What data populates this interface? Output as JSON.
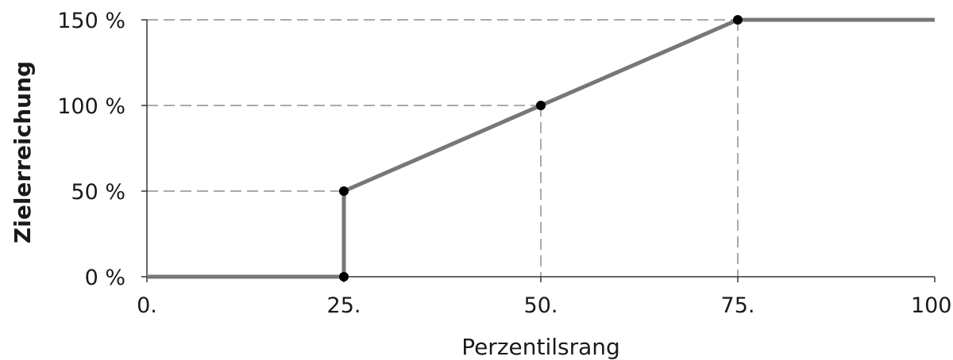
{
  "chart_data": {
    "type": "line",
    "title": "",
    "xlabel": "Perzentilsrang",
    "ylabel": "Zielerreichung",
    "xlim": [
      0,
      100
    ],
    "ylim": [
      0,
      150
    ],
    "x_ticks": [
      {
        "value": 0,
        "label": "0."
      },
      {
        "value": 25,
        "label": "25."
      },
      {
        "value": 50,
        "label": "50."
      },
      {
        "value": 75,
        "label": "75."
      },
      {
        "value": 100,
        "label": "100."
      }
    ],
    "y_ticks": [
      {
        "value": 0,
        "label": "0 %"
      },
      {
        "value": 50,
        "label": "50 %"
      },
      {
        "value": 100,
        "label": "100 %"
      },
      {
        "value": 150,
        "label": "150 %"
      }
    ],
    "series": [
      {
        "x": [
          0,
          25,
          25,
          50,
          75,
          100
        ],
        "y": [
          0,
          0,
          50,
          100,
          150,
          150
        ]
      }
    ],
    "markers": [
      {
        "x": 25,
        "y": 0
      },
      {
        "x": 25,
        "y": 50
      },
      {
        "x": 50,
        "y": 100
      },
      {
        "x": 75,
        "y": 150
      }
    ],
    "reference_lines": [
      {
        "x": 25,
        "y": 50
      },
      {
        "x": 50,
        "y": 100
      },
      {
        "x": 75,
        "y": 150
      }
    ],
    "grid": false,
    "legend": "none",
    "colors": {
      "line": "#777777",
      "marker": "#000000",
      "reference": "#aaaaaa",
      "axis": "#333333",
      "text": "#1a1a1a"
    }
  }
}
